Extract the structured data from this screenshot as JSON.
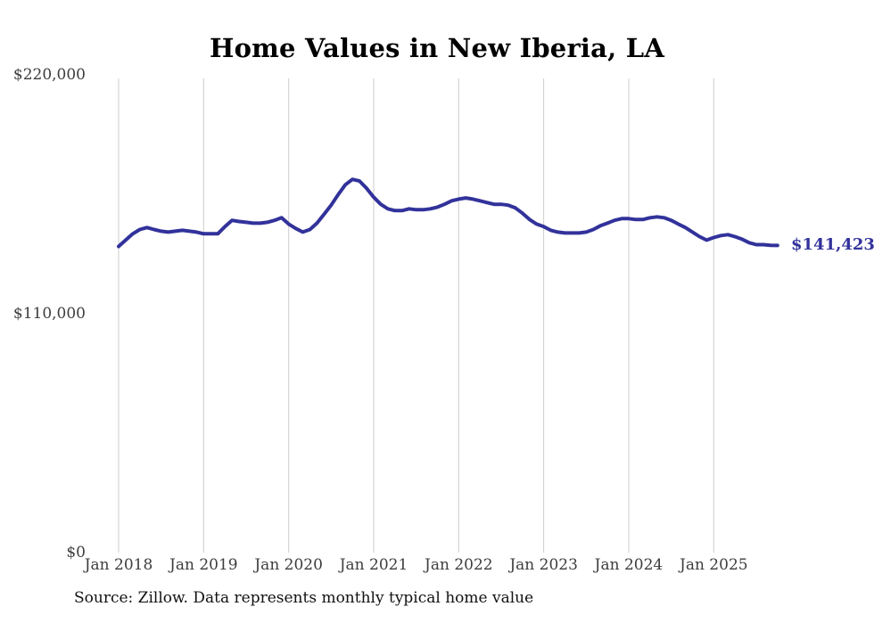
{
  "title": "Home Values in New Iberia, LA",
  "source_note": "Source: Zillow. Data represents monthly typical home value",
  "colors": {
    "line": "#32329b",
    "end_label_text": "#32329b",
    "gridline": "#cccccc",
    "axis_text": "#3d3d3d",
    "title_text": "#000000",
    "source_text": "#111111",
    "background": "#ffffff"
  },
  "chart_data": {
    "type": "line",
    "title": "Home Values in New Iberia, LA",
    "series_name": "Monthly typical home value (Zillow)",
    "unit": "USD",
    "xlabel": "",
    "ylabel": "",
    "ylim": [
      0,
      220000
    ],
    "grid": "vertical-only",
    "legend": "none",
    "y_tick_labels": [
      "$220,000",
      "$110,000",
      "$0"
    ],
    "y_tick_values": [
      220000,
      110000,
      0
    ],
    "x_tick_labels": [
      "Jan 2018",
      "Jan 2019",
      "Jan 2020",
      "Jan 2021",
      "Jan 2022",
      "Jan 2023",
      "Jan 2024",
      "Jan 2025"
    ],
    "last_value": 141423,
    "last_value_label": "$141,423",
    "months": [
      "2018-01",
      "2018-02",
      "2018-03",
      "2018-04",
      "2018-05",
      "2018-06",
      "2018-07",
      "2018-08",
      "2018-09",
      "2018-10",
      "2018-11",
      "2018-12",
      "2019-01",
      "2019-02",
      "2019-03",
      "2019-04",
      "2019-05",
      "2019-06",
      "2019-07",
      "2019-08",
      "2019-09",
      "2019-10",
      "2019-11",
      "2019-12",
      "2020-01",
      "2020-02",
      "2020-03",
      "2020-04",
      "2020-05",
      "2020-06",
      "2020-07",
      "2020-08",
      "2020-09",
      "2020-10",
      "2020-11",
      "2020-12",
      "2021-01",
      "2021-02",
      "2021-03",
      "2021-04",
      "2021-05",
      "2021-06",
      "2021-07",
      "2021-08",
      "2021-09",
      "2021-10",
      "2021-11",
      "2021-12",
      "2022-01",
      "2022-02",
      "2022-03",
      "2022-04",
      "2022-05",
      "2022-06",
      "2022-07",
      "2022-08",
      "2022-09",
      "2022-10",
      "2022-11",
      "2022-12",
      "2023-01",
      "2023-02",
      "2023-03",
      "2023-04",
      "2023-05",
      "2023-06",
      "2023-07",
      "2023-08",
      "2023-09",
      "2023-10",
      "2023-11",
      "2023-12",
      "2024-01",
      "2024-02",
      "2024-03",
      "2024-04",
      "2024-05",
      "2024-06",
      "2024-07",
      "2024-08",
      "2024-09",
      "2024-10",
      "2024-11",
      "2024-12",
      "2025-01",
      "2025-02",
      "2025-03",
      "2025-04",
      "2025-05",
      "2025-06",
      "2025-07",
      "2025-08",
      "2025-09",
      "2025-10"
    ],
    "values": [
      141000,
      143900,
      146800,
      148800,
      149700,
      148800,
      148000,
      147600,
      148000,
      148400,
      148000,
      147600,
      146800,
      146800,
      146800,
      150100,
      153000,
      152500,
      152100,
      151700,
      151700,
      152100,
      153000,
      154200,
      151300,
      149300,
      147600,
      148800,
      151700,
      155800,
      160000,
      164900,
      169400,
      171900,
      171100,
      167800,
      163700,
      160400,
      158300,
      157500,
      157500,
      158300,
      157900,
      157900,
      158300,
      159100,
      160400,
      162000,
      162800,
      163300,
      162800,
      162000,
      161200,
      160400,
      160400,
      160000,
      158700,
      156300,
      153400,
      151300,
      150100,
      148400,
      147600,
      147200,
      147200,
      147200,
      147600,
      148800,
      150500,
      151700,
      153000,
      153800,
      153800,
      153400,
      153400,
      154200,
      154600,
      154200,
      153000,
      151300,
      149700,
      147600,
      145500,
      143900,
      145100,
      146000,
      146400,
      145500,
      144300,
      142700,
      141800,
      141800,
      141500,
      141423
    ]
  }
}
